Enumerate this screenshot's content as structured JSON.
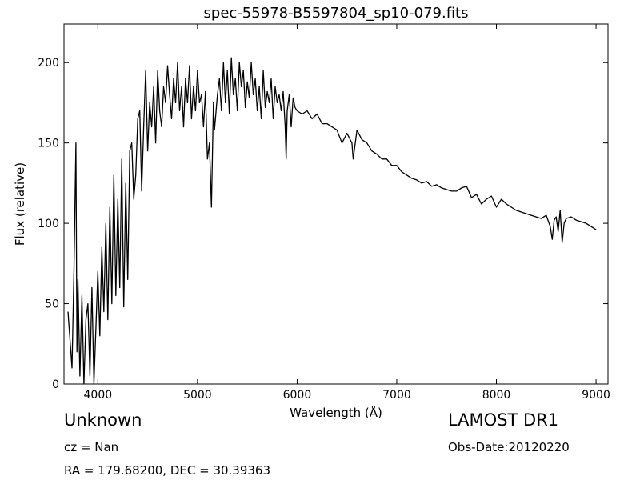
{
  "chart_data": {
    "type": "line",
    "title": "spec-55978-B5597804_sp10-079.fits",
    "xlabel": "Wavelength (Å)",
    "ylabel": "Flux (relative)",
    "xlim": [
      3660,
      9120
    ],
    "ylim": [
      0,
      224
    ],
    "xticks": [
      4000,
      5000,
      6000,
      7000,
      8000,
      9000
    ],
    "yticks": [
      0,
      50,
      100,
      150,
      200
    ],
    "grid": false,
    "line_color": "#000000",
    "series": [
      {
        "x": [
          3700,
          3740,
          3760,
          3780,
          3790,
          3800,
          3820,
          3840,
          3860,
          3880,
          3900,
          3920,
          3940,
          3960,
          3980,
          4000,
          4020,
          4040,
          4060,
          4080,
          4100,
          4120,
          4140,
          4160,
          4180,
          4200,
          4220,
          4240,
          4260,
          4280,
          4300,
          4320,
          4340,
          4360,
          4380,
          4400,
          4420,
          4440,
          4460,
          4480,
          4500,
          4520,
          4540,
          4560,
          4580,
          4600,
          4620,
          4640,
          4660,
          4680,
          4700,
          4720,
          4740,
          4760,
          4780,
          4800,
          4820,
          4840,
          4860,
          4880,
          4900,
          4920,
          4940,
          4960,
          4980,
          5000,
          5020,
          5040,
          5060,
          5080,
          5100,
          5120,
          5140,
          5160,
          5170,
          5180,
          5200,
          5220,
          5240,
          5260,
          5280,
          5300,
          5320,
          5340,
          5360,
          5380,
          5400,
          5420,
          5440,
          5460,
          5480,
          5500,
          5520,
          5540,
          5560,
          5580,
          5600,
          5620,
          5640,
          5660,
          5680,
          5700,
          5720,
          5740,
          5760,
          5780,
          5800,
          5820,
          5840,
          5860,
          5880,
          5890,
          5900,
          5920,
          5940,
          5960,
          5980,
          6000,
          6050,
          6100,
          6150,
          6200,
          6250,
          6300,
          6350,
          6400,
          6450,
          6500,
          6550,
          6563,
          6600,
          6650,
          6700,
          6750,
          6800,
          6850,
          6900,
          6950,
          7000,
          7050,
          7100,
          7150,
          7200,
          7250,
          7300,
          7350,
          7400,
          7450,
          7500,
          7550,
          7600,
          7650,
          7700,
          7750,
          7800,
          7850,
          7900,
          7950,
          8000,
          8050,
          8100,
          8150,
          8200,
          8250,
          8300,
          8350,
          8400,
          8450,
          8500,
          8540,
          8560,
          8580,
          8600,
          8620,
          8640,
          8660,
          8680,
          8700,
          8750,
          8800,
          8850,
          8900,
          8950,
          9000
        ],
        "y": [
          45,
          10,
          72,
          150,
          20,
          65,
          5,
          55,
          0,
          40,
          50,
          5,
          60,
          0,
          35,
          70,
          30,
          85,
          45,
          100,
          40,
          110,
          50,
          130,
          55,
          115,
          60,
          140,
          48,
          125,
          65,
          145,
          150,
          115,
          130,
          165,
          170,
          120,
          160,
          195,
          145,
          175,
          160,
          185,
          150,
          195,
          170,
          160,
          185,
          175,
          198,
          180,
          165,
          190,
          175,
          200,
          170,
          185,
          160,
          190,
          175,
          198,
          165,
          185,
          170,
          195,
          175,
          180,
          160,
          182,
          140,
          150,
          110,
          175,
          158,
          165,
          180,
          190,
          170,
          200,
          175,
          195,
          168,
          203,
          180,
          190,
          170,
          200,
          185,
          195,
          172,
          188,
          178,
          200,
          180,
          190,
          170,
          185,
          165,
          195,
          172,
          182,
          175,
          190,
          165,
          185,
          175,
          180,
          170,
          182,
          160,
          140,
          170,
          180,
          160,
          178,
          172,
          170,
          168,
          170,
          165,
          168,
          162,
          162,
          160,
          158,
          150,
          156,
          150,
          140,
          158,
          152,
          150,
          145,
          143,
          140,
          140,
          136,
          136,
          132,
          130,
          128,
          127,
          125,
          126,
          123,
          124,
          122,
          121,
          120,
          120,
          122,
          123,
          116,
          118,
          112,
          115,
          117,
          110,
          115,
          112,
          110,
          108,
          107,
          106,
          105,
          104,
          103,
          105,
          98,
          90,
          102,
          104,
          95,
          108,
          88,
          100,
          103,
          104,
          102,
          101,
          100,
          98,
          96
        ]
      }
    ]
  },
  "info": {
    "object_class": "Unknown",
    "redshift_text": "cz = Nan",
    "coords_text": "RA = 179.68200, DEC = 30.39363",
    "survey": "LAMOST DR1",
    "obs_date": "Obs-Date:20120220"
  }
}
